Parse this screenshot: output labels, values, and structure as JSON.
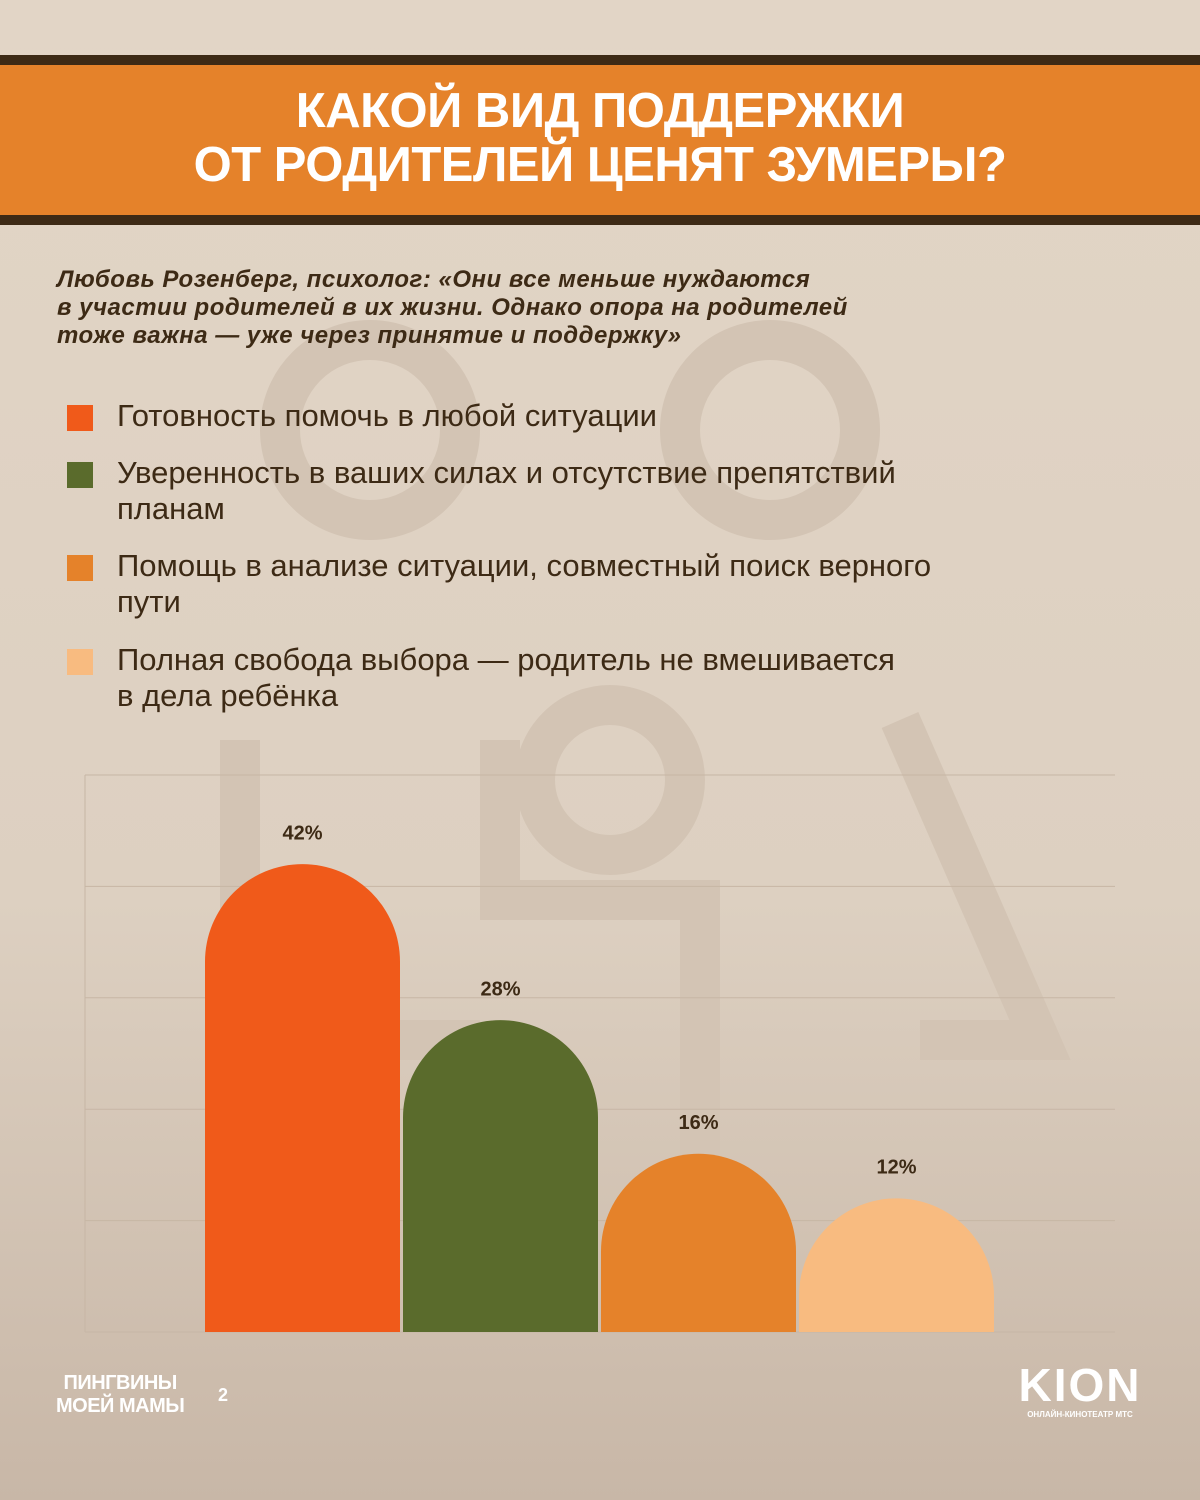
{
  "chart_data": {
    "type": "bar",
    "title": "КАКОЙ ВИД ПОДДЕРЖКИ\nОТ РОДИТЕЛЕЙ ЦЕНЯТ ЗУМЕРЫ?",
    "subtitle": "Любовь Розенберг, психолог: «Они все меньше нуждаются\nв участии родителей в их жизни. Однако опора на родителей\nтоже важна — уже через принятие и поддержку»",
    "categories": [
      "Готовность помочь в любой ситуации",
      "Уверенность в ваших силах и отсутствие препятствий\nпланам",
      "Помощь в анализе ситуации, совместный поиск верного\nпути",
      "Полная свобода выбора — родитель не вмешивается\nв дела ребёнка"
    ],
    "values": [
      42,
      28,
      16,
      12
    ],
    "value_labels": [
      "42%",
      "28%",
      "16%",
      "12%"
    ],
    "colors": [
      "#f05a1a",
      "#5a6b2c",
      "#e5822a",
      "#f8bb80"
    ],
    "ylim": [
      0,
      50
    ],
    "yticks": [
      0,
      10,
      20,
      30,
      40,
      50
    ],
    "grid": true
  },
  "footer": {
    "left_logo": "ПИНГВИНЫ\nМОЕЙ МАМЫ",
    "left_logo_sup": "2",
    "right_logo": "KION",
    "right_tagline": "ОНЛАЙН-КИНОТЕАТР МТС"
  }
}
